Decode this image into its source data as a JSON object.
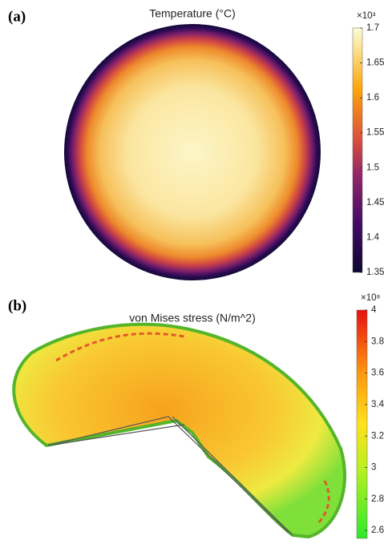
{
  "chart_data": [
    {
      "type": "colormap",
      "panel": "(a)",
      "title": "Temperature (°C)",
      "multiplier": "×10³",
      "clim": [
        1.35,
        1.7
      ],
      "cticks": [
        1.35,
        1.4,
        1.45,
        1.5,
        1.55,
        1.6,
        1.65,
        1.7
      ]
    },
    {
      "type": "colormap",
      "panel": "(b)",
      "title": "von Mises stress (N/m^2)",
      "multiplier": "×10⁸",
      "clim": [
        2.55,
        4
      ],
      "cticks": [
        2.6,
        2.8,
        3,
        3.2,
        3.4,
        3.6,
        3.8,
        4
      ]
    }
  ]
}
